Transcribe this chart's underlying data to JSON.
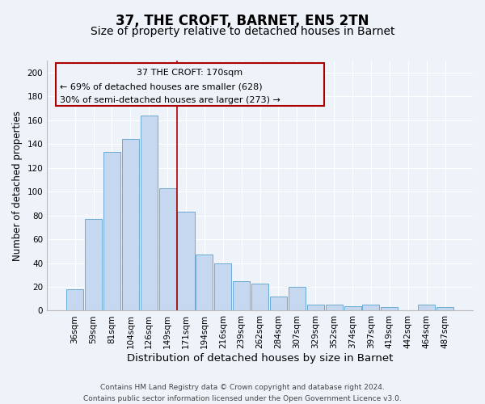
{
  "title": "37, THE CROFT, BARNET, EN5 2TN",
  "subtitle": "Size of property relative to detached houses in Barnet",
  "xlabel": "Distribution of detached houses by size in Barnet",
  "ylabel": "Number of detached properties",
  "bar_labels": [
    "36sqm",
    "59sqm",
    "81sqm",
    "104sqm",
    "126sqm",
    "149sqm",
    "171sqm",
    "194sqm",
    "216sqm",
    "239sqm",
    "262sqm",
    "284sqm",
    "307sqm",
    "329sqm",
    "352sqm",
    "374sqm",
    "397sqm",
    "419sqm",
    "442sqm",
    "464sqm",
    "487sqm"
  ],
  "bar_values": [
    18,
    77,
    133,
    144,
    164,
    103,
    83,
    47,
    40,
    25,
    23,
    12,
    20,
    5,
    5,
    4,
    5,
    3,
    0,
    5,
    3
  ],
  "bar_color": "#c5d8f0",
  "bar_edge_color": "#6aaad4",
  "vline_index": 6,
  "vline_color": "#aa0000",
  "annotation_line1": "37 THE CROFT: 170sqm",
  "annotation_line2": "← 69% of detached houses are smaller (628)",
  "annotation_line3": "30% of semi-detached houses are larger (273) →",
  "ylim": [
    0,
    210
  ],
  "yticks": [
    0,
    20,
    40,
    60,
    80,
    100,
    120,
    140,
    160,
    180,
    200
  ],
  "footer_line1": "Contains HM Land Registry data © Crown copyright and database right 2024.",
  "footer_line2": "Contains public sector information licensed under the Open Government Licence v3.0.",
  "bg_color": "#eef2f9",
  "grid_color": "#ffffff",
  "title_fontsize": 12,
  "subtitle_fontsize": 10,
  "xlabel_fontsize": 9.5,
  "ylabel_fontsize": 8.5,
  "tick_fontsize": 7.5,
  "annotation_fontsize": 8,
  "footer_fontsize": 6.5
}
